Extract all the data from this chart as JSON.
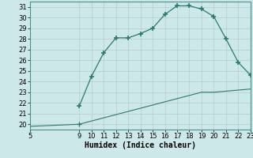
{
  "title": "",
  "xlabel": "Humidex (Indice chaleur)",
  "bg_color": "#cce8e8",
  "grid_color_major": "#b8cccc",
  "grid_color_minor": "#d4e4e4",
  "line_color": "#2a7a70",
  "upper_x": [
    9,
    10,
    11,
    12,
    13,
    14,
    15,
    16,
    17,
    18,
    19,
    20,
    21,
    22,
    23
  ],
  "upper_y": [
    21.7,
    24.5,
    26.7,
    28.1,
    28.1,
    28.5,
    29.0,
    30.3,
    31.1,
    31.1,
    30.8,
    30.1,
    28.0,
    25.8,
    24.6
  ],
  "lower_x": [
    5,
    9,
    10,
    11,
    12,
    13,
    14,
    15,
    16,
    17,
    18,
    19,
    20,
    21,
    22,
    23
  ],
  "lower_y": [
    19.8,
    20.0,
    20.3,
    20.6,
    20.9,
    21.2,
    21.5,
    21.8,
    22.1,
    22.4,
    22.7,
    23.0,
    23.0,
    23.1,
    23.2,
    23.3
  ],
  "lower_marker_x": [
    9
  ],
  "lower_marker_y": [
    21.7
  ],
  "xlim": [
    5,
    23
  ],
  "ylim": [
    19.5,
    31.5
  ],
  "yticks": [
    20,
    21,
    22,
    23,
    24,
    25,
    26,
    27,
    28,
    29,
    30,
    31
  ],
  "xticks": [
    5,
    9,
    10,
    11,
    12,
    13,
    14,
    15,
    16,
    17,
    18,
    19,
    20,
    21,
    22,
    23
  ],
  "tick_fontsize": 6.0,
  "xlabel_fontsize": 7.0
}
